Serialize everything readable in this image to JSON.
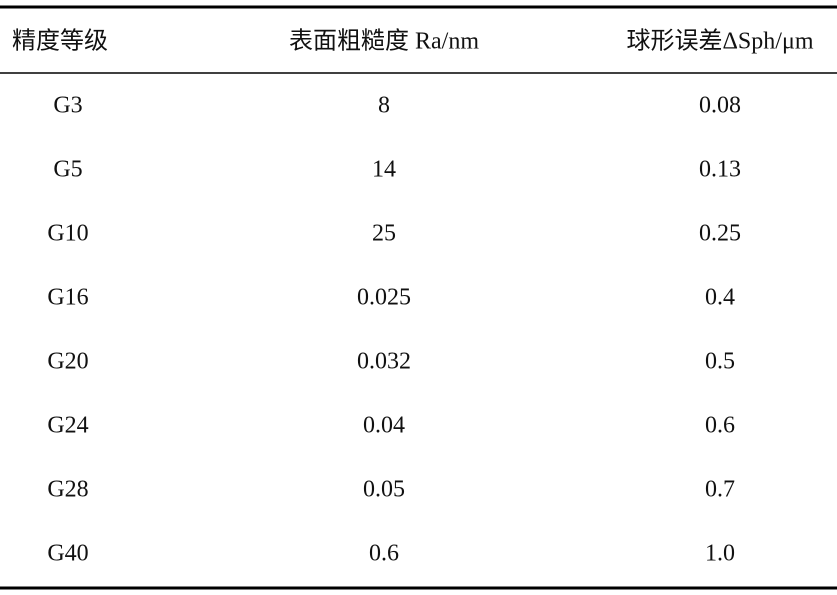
{
  "table": {
    "header": [
      "精度等级",
      "表面粗糙度 Ra/nm",
      "球形误差ΔSph/μm"
    ],
    "rows": [
      [
        "G3",
        "8",
        "0.08"
      ],
      [
        "G5",
        "14",
        "0.13"
      ],
      [
        "G10",
        "25",
        "0.25"
      ],
      [
        "G16",
        "0.025",
        "0.4"
      ],
      [
        "G20",
        "0.032",
        "0.5"
      ],
      [
        "G24",
        "0.04",
        "0.6"
      ],
      [
        "G28",
        "0.05",
        "0.7"
      ],
      [
        "G40",
        "0.6",
        "1.0"
      ]
    ]
  }
}
